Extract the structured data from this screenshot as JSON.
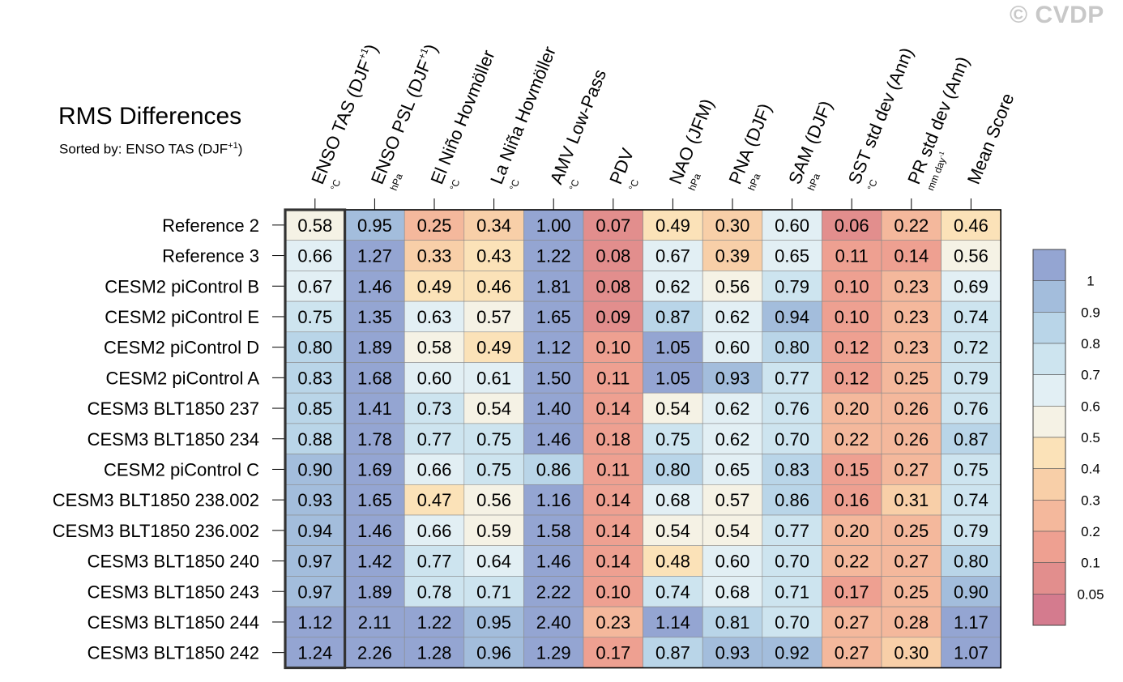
{
  "watermark": "© CVDP",
  "title": "RMS Differences",
  "subtitle": {
    "prefix": "Sorted by: ENSO TAS (DJF",
    "sup": "+1",
    "suffix": ")"
  },
  "chart_data": {
    "type": "heatmap",
    "columns": [
      {
        "name": "ENSO TAS (DJF",
        "sup": "+1",
        "close": ")",
        "unit": "°C"
      },
      {
        "name": "ENSO PSL (DJF",
        "sup": "+1",
        "close": ")",
        "unit": "hPa"
      },
      {
        "name": "El Niño Hovmöller",
        "unit": "°C"
      },
      {
        "name": "La Niña Hovmöller",
        "unit": "°C"
      },
      {
        "name": "AMV Low-Pass",
        "unit": "°C"
      },
      {
        "name": "PDV",
        "unit": "°C"
      },
      {
        "name": "NAO (JFM)",
        "unit": "hPa"
      },
      {
        "name": "PNA (DJF)",
        "unit": "hPa"
      },
      {
        "name": "SAM (DJF)",
        "unit": "hPa"
      },
      {
        "name": "SST std dev (Ann)",
        "unit": "°C"
      },
      {
        "name": "PR std dev (Ann)",
        "unit": "mm day",
        "unit_sup": "-1"
      },
      {
        "name": "Mean Score",
        "unit": ""
      }
    ],
    "rows": [
      {
        "label": "Reference 2",
        "values": [
          "0.58",
          "0.95",
          "0.25",
          "0.34",
          "1.00",
          "0.07",
          "0.49",
          "0.30",
          "0.60",
          "0.06",
          "0.22",
          "0.46"
        ]
      },
      {
        "label": "Reference 3",
        "values": [
          "0.66",
          "1.27",
          "0.33",
          "0.43",
          "1.22",
          "0.08",
          "0.67",
          "0.39",
          "0.65",
          "0.11",
          "0.14",
          "0.56"
        ]
      },
      {
        "label": "CESM2 piControl B",
        "values": [
          "0.67",
          "1.46",
          "0.49",
          "0.46",
          "1.81",
          "0.08",
          "0.62",
          "0.56",
          "0.79",
          "0.10",
          "0.23",
          "0.69"
        ]
      },
      {
        "label": "CESM2 piControl E",
        "values": [
          "0.75",
          "1.35",
          "0.63",
          "0.57",
          "1.65",
          "0.09",
          "0.87",
          "0.62",
          "0.94",
          "0.10",
          "0.23",
          "0.74"
        ]
      },
      {
        "label": "CESM2 piControl D",
        "values": [
          "0.80",
          "1.89",
          "0.58",
          "0.49",
          "1.12",
          "0.10",
          "1.05",
          "0.60",
          "0.80",
          "0.12",
          "0.23",
          "0.72"
        ]
      },
      {
        "label": "CESM2 piControl A",
        "values": [
          "0.83",
          "1.68",
          "0.60",
          "0.61",
          "1.50",
          "0.11",
          "1.05",
          "0.93",
          "0.77",
          "0.12",
          "0.25",
          "0.79"
        ]
      },
      {
        "label": "CESM3 BLT1850 237",
        "values": [
          "0.85",
          "1.41",
          "0.73",
          "0.54",
          "1.40",
          "0.14",
          "0.54",
          "0.62",
          "0.76",
          "0.20",
          "0.26",
          "0.76"
        ]
      },
      {
        "label": "CESM3 BLT1850 234",
        "values": [
          "0.88",
          "1.78",
          "0.77",
          "0.75",
          "1.46",
          "0.18",
          "0.75",
          "0.62",
          "0.70",
          "0.22",
          "0.26",
          "0.87"
        ]
      },
      {
        "label": "CESM2 piControl C",
        "values": [
          "0.90",
          "1.69",
          "0.66",
          "0.75",
          "0.86",
          "0.11",
          "0.80",
          "0.65",
          "0.83",
          "0.15",
          "0.27",
          "0.75"
        ]
      },
      {
        "label": "CESM3 BLT1850 238.002",
        "values": [
          "0.93",
          "1.65",
          "0.47",
          "0.56",
          "1.16",
          "0.14",
          "0.68",
          "0.57",
          "0.86",
          "0.16",
          "0.31",
          "0.74"
        ]
      },
      {
        "label": "CESM3 BLT1850 236.002",
        "values": [
          "0.94",
          "1.46",
          "0.66",
          "0.59",
          "1.58",
          "0.14",
          "0.54",
          "0.54",
          "0.77",
          "0.20",
          "0.25",
          "0.79"
        ]
      },
      {
        "label": "CESM3 BLT1850 240",
        "values": [
          "0.97",
          "1.42",
          "0.77",
          "0.64",
          "1.46",
          "0.14",
          "0.48",
          "0.60",
          "0.70",
          "0.22",
          "0.27",
          "0.80"
        ]
      },
      {
        "label": "CESM3 BLT1850 243",
        "values": [
          "0.97",
          "1.89",
          "0.78",
          "0.71",
          "2.22",
          "0.10",
          "0.74",
          "0.68",
          "0.71",
          "0.17",
          "0.25",
          "0.90"
        ]
      },
      {
        "label": "CESM3 BLT1850 244",
        "values": [
          "1.12",
          "2.11",
          "1.22",
          "0.95",
          "2.40",
          "0.23",
          "1.14",
          "0.81",
          "0.70",
          "0.27",
          "0.28",
          "1.17"
        ]
      },
      {
        "label": "CESM3 BLT1850 242",
        "values": [
          "1.24",
          "2.26",
          "1.28",
          "0.96",
          "1.29",
          "0.17",
          "0.87",
          "0.93",
          "0.92",
          "0.27",
          "0.30",
          "1.07"
        ]
      }
    ],
    "highlighted_column": 0,
    "colorbar": {
      "labels": [
        "1",
        "0.9",
        "0.8",
        "0.7",
        "0.6",
        "0.5",
        "0.4",
        "0.3",
        "0.2",
        "0.1",
        "0.05"
      ],
      "boundaries": [
        0.05,
        0.1,
        0.2,
        0.3,
        0.4,
        0.5,
        0.6,
        0.7,
        0.8,
        0.9,
        1.0
      ],
      "colors": [
        "#d47b8e",
        "#e28e8d",
        "#eea091",
        "#f4b89c",
        "#f8cfa8",
        "#fbe2b8",
        "#f5f2e5",
        "#e2eff4",
        "#cde4ef",
        "#b9d5e8",
        "#a3bddc",
        "#94a5d2"
      ]
    }
  }
}
